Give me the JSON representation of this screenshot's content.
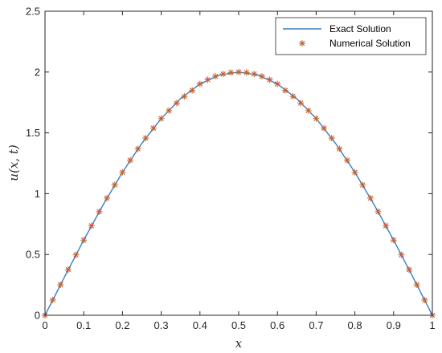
{
  "chart_data": {
    "type": "line",
    "title": "",
    "xlabel": "x",
    "ylabel": "u(x, t)",
    "xlim": [
      0,
      1
    ],
    "ylim": [
      0,
      2.5
    ],
    "x_ticks": [
      "0",
      "0.1",
      "0.2",
      "0.3",
      "0.4",
      "0.5",
      "0.6",
      "0.7",
      "0.8",
      "0.9",
      "1"
    ],
    "y_ticks": [
      "0",
      "0.5",
      "1",
      "1.5",
      "2",
      "2.5"
    ],
    "grid": false,
    "legend_position": "top-right",
    "series": [
      {
        "name": "Exact Solution",
        "style": "line",
        "color": "#3a7fc1",
        "x": [
          0,
          0.05,
          0.1,
          0.15,
          0.2,
          0.25,
          0.3,
          0.35,
          0.4,
          0.45,
          0.5,
          0.55,
          0.6,
          0.65,
          0.7,
          0.75,
          0.8,
          0.85,
          0.9,
          0.95,
          1
        ],
        "y": [
          0,
          0.313,
          0.618,
          0.908,
          1.176,
          1.414,
          1.618,
          1.782,
          1.902,
          1.975,
          2.0,
          1.975,
          1.902,
          1.782,
          1.618,
          1.414,
          1.176,
          0.908,
          0.618,
          0.313,
          0
        ]
      },
      {
        "name": "Numerical Solution",
        "style": "markers",
        "marker": "asterisk",
        "color": "#9a8a2a",
        "accent_color": "#e04a4a",
        "x": [
          0,
          0.02,
          0.04,
          0.06,
          0.08,
          0.1,
          0.12,
          0.14,
          0.16,
          0.18,
          0.2,
          0.22,
          0.24,
          0.26,
          0.28,
          0.3,
          0.32,
          0.34,
          0.36,
          0.38,
          0.4,
          0.42,
          0.44,
          0.46,
          0.48,
          0.5,
          0.52,
          0.54,
          0.56,
          0.58,
          0.6,
          0.62,
          0.64,
          0.66,
          0.68,
          0.7,
          0.72,
          0.74,
          0.76,
          0.78,
          0.8,
          0.82,
          0.84,
          0.86,
          0.88,
          0.9,
          0.92,
          0.94,
          0.96,
          0.98,
          1
        ],
        "y": [
          0,
          0.126,
          0.251,
          0.375,
          0.497,
          0.618,
          0.736,
          0.852,
          0.964,
          1.072,
          1.176,
          1.275,
          1.369,
          1.457,
          1.539,
          1.618,
          1.683,
          1.745,
          1.8,
          1.849,
          1.902,
          1.937,
          1.965,
          1.984,
          1.996,
          2.0,
          1.996,
          1.984,
          1.965,
          1.937,
          1.902,
          1.849,
          1.8,
          1.745,
          1.683,
          1.618,
          1.539,
          1.457,
          1.369,
          1.275,
          1.176,
          1.072,
          0.964,
          0.852,
          0.736,
          0.618,
          0.497,
          0.375,
          0.251,
          0.126,
          0
        ]
      }
    ]
  }
}
